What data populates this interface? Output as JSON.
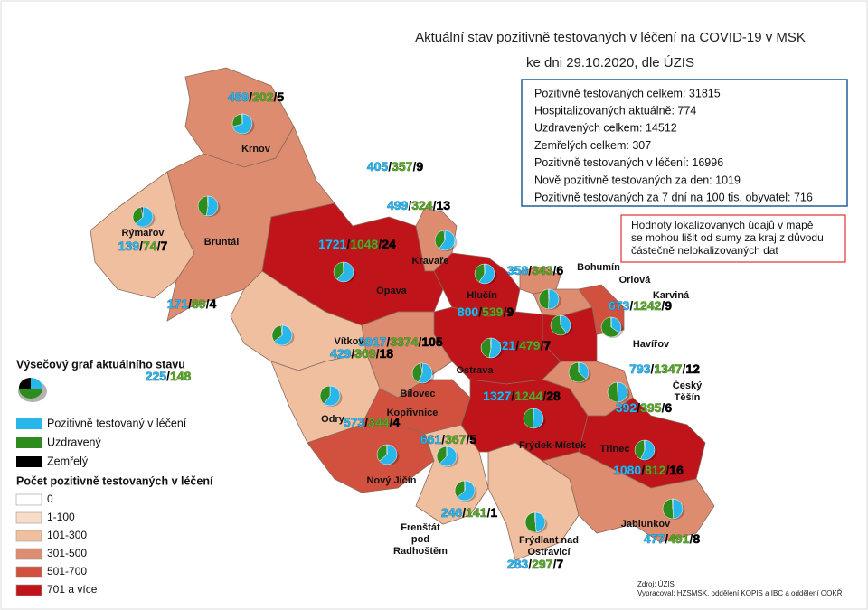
{
  "title": [
    "Aktuální stav pozitivně testovaných v léčení na COVID-19 v MSK",
    "ke dni 29.10.2020, dle ÚZIS"
  ],
  "info_box": [
    "Pozitivně testovaných celkem: 31815",
    "Hospitalizovaných aktuálně: 774",
    "Uzdravených celkem: 14512",
    "Zemřelých celkem: 307",
    "Pozitivně testovaných v léčení: 16996",
    "Nově pozitivně testovaných za den: 1019",
    "Pozitivně testovaných za 7 dní na 100 tis. obyvatel: 716"
  ],
  "note": [
    "Hodnoty lokalizovaných údajů v mapě",
    "se mohou lišit od sumy za kraj z důvodu",
    "částečně nelokalizovaných dat"
  ],
  "separator": "/",
  "pie_legend": {
    "title": "Výsečový graf aktuálního stavu",
    "items": [
      {
        "label": "Pozitivně testovaný v léčení",
        "color": "#29b6ea"
      },
      {
        "label": "Uzdravený",
        "color": "#2e8b1e"
      },
      {
        "label": "Zemřelý",
        "color": "#000000"
      }
    ]
  },
  "class_legend": {
    "title": "Počet pozitivně testovaných v léčení",
    "items": [
      {
        "label": "0",
        "color": "#ffffff"
      },
      {
        "label": "1-100",
        "color": "#f7dcc8"
      },
      {
        "label": "101-300",
        "color": "#efbfa0"
      },
      {
        "label": "301-500",
        "color": "#de8c70"
      },
      {
        "label": "501-700",
        "color": "#d2503e"
      },
      {
        "label": "701 a více",
        "color": "#c0141b"
      }
    ]
  },
  "source": [
    "Zdroj: ÚZIS",
    "Vypracoval: HZSMSK, oddělení KOPIS a IBC a oddělení OOKŘ"
  ],
  "districts": [
    {
      "name": [
        "Krnov"
      ],
      "color": "#de8c70",
      "values": [
        489,
        202,
        5
      ]
    },
    {
      "name": [
        "Bruntál"
      ],
      "color": "#de8c70",
      "values": [
        405,
        357,
        9
      ]
    },
    {
      "name": [
        "Rýmařov"
      ],
      "color": "#efbfa0",
      "values": [
        139,
        74,
        7
      ]
    },
    {
      "name": [
        "Kravaře"
      ],
      "color": "#de8c70",
      "values": [
        499,
        324,
        13
      ]
    },
    {
      "name": [
        "Opava"
      ],
      "color": "#c0141b",
      "values": [
        1721,
        1048,
        24
      ]
    },
    {
      "name": [
        "Hlučín"
      ],
      "color": "#c0141b",
      "values": [
        800,
        539,
        9
      ]
    },
    {
      "name": [
        "Bohumín"
      ],
      "color": "#de8c70",
      "values": [
        358,
        343,
        6
      ]
    },
    {
      "name": [
        "Orlová"
      ],
      "color": "#de8c70",
      "values": [
        321,
        479,
        7
      ]
    },
    {
      "name": [
        "Karviná"
      ],
      "color": "#d2503e",
      "values": [
        673,
        1242,
        9
      ]
    },
    {
      "name": [
        "Havířov"
      ],
      "color": "#c0141b",
      "values": [
        793,
        1347,
        12
      ]
    },
    {
      "name": [
        "Ostrava"
      ],
      "color": "#c0141b",
      "values": [
        3917,
        3374,
        105
      ]
    },
    {
      "name": [
        "Bílovec"
      ],
      "color": "#de8c70",
      "values": [
        429,
        309,
        18
      ]
    },
    {
      "name": [
        "Vítkov"
      ],
      "color": "#efbfa0",
      "values": [
        171,
        89,
        4
      ]
    },
    {
      "name": [
        "Odry"
      ],
      "color": "#efbfa0",
      "values": [
        225,
        148
      ]
    },
    {
      "name": [
        "Český",
        "Těšín"
      ],
      "color": "#de8c70",
      "values": [
        392,
        395,
        6
      ]
    },
    {
      "name": [
        "Kopřivnice"
      ],
      "color": "#d2503e",
      "values": [
        573,
        344,
        4
      ]
    },
    {
      "name": [
        "Frýdek-Místek"
      ],
      "color": "#c0141b",
      "values": [
        1327,
        1244,
        28
      ]
    },
    {
      "name": [
        "Nový Jičín"
      ],
      "color": "#d2503e",
      "values": [
        661,
        367,
        5
      ]
    },
    {
      "name": [
        "Třinec"
      ],
      "color": "#c0141b",
      "values": [
        1080,
        812,
        16
      ]
    },
    {
      "name": [
        "Frenštát",
        "pod",
        "Radhoštěm"
      ],
      "color": "#efbfa0",
      "values": [
        246,
        141,
        1
      ]
    },
    {
      "name": [
        "Frýdlant nad",
        "Ostravicí"
      ],
      "color": "#efbfa0",
      "values": [
        283,
        297,
        7
      ]
    },
    {
      "name": [
        "Jablunkov"
      ],
      "color": "#de8c70",
      "values": [
        477,
        491,
        8
      ]
    }
  ]
}
